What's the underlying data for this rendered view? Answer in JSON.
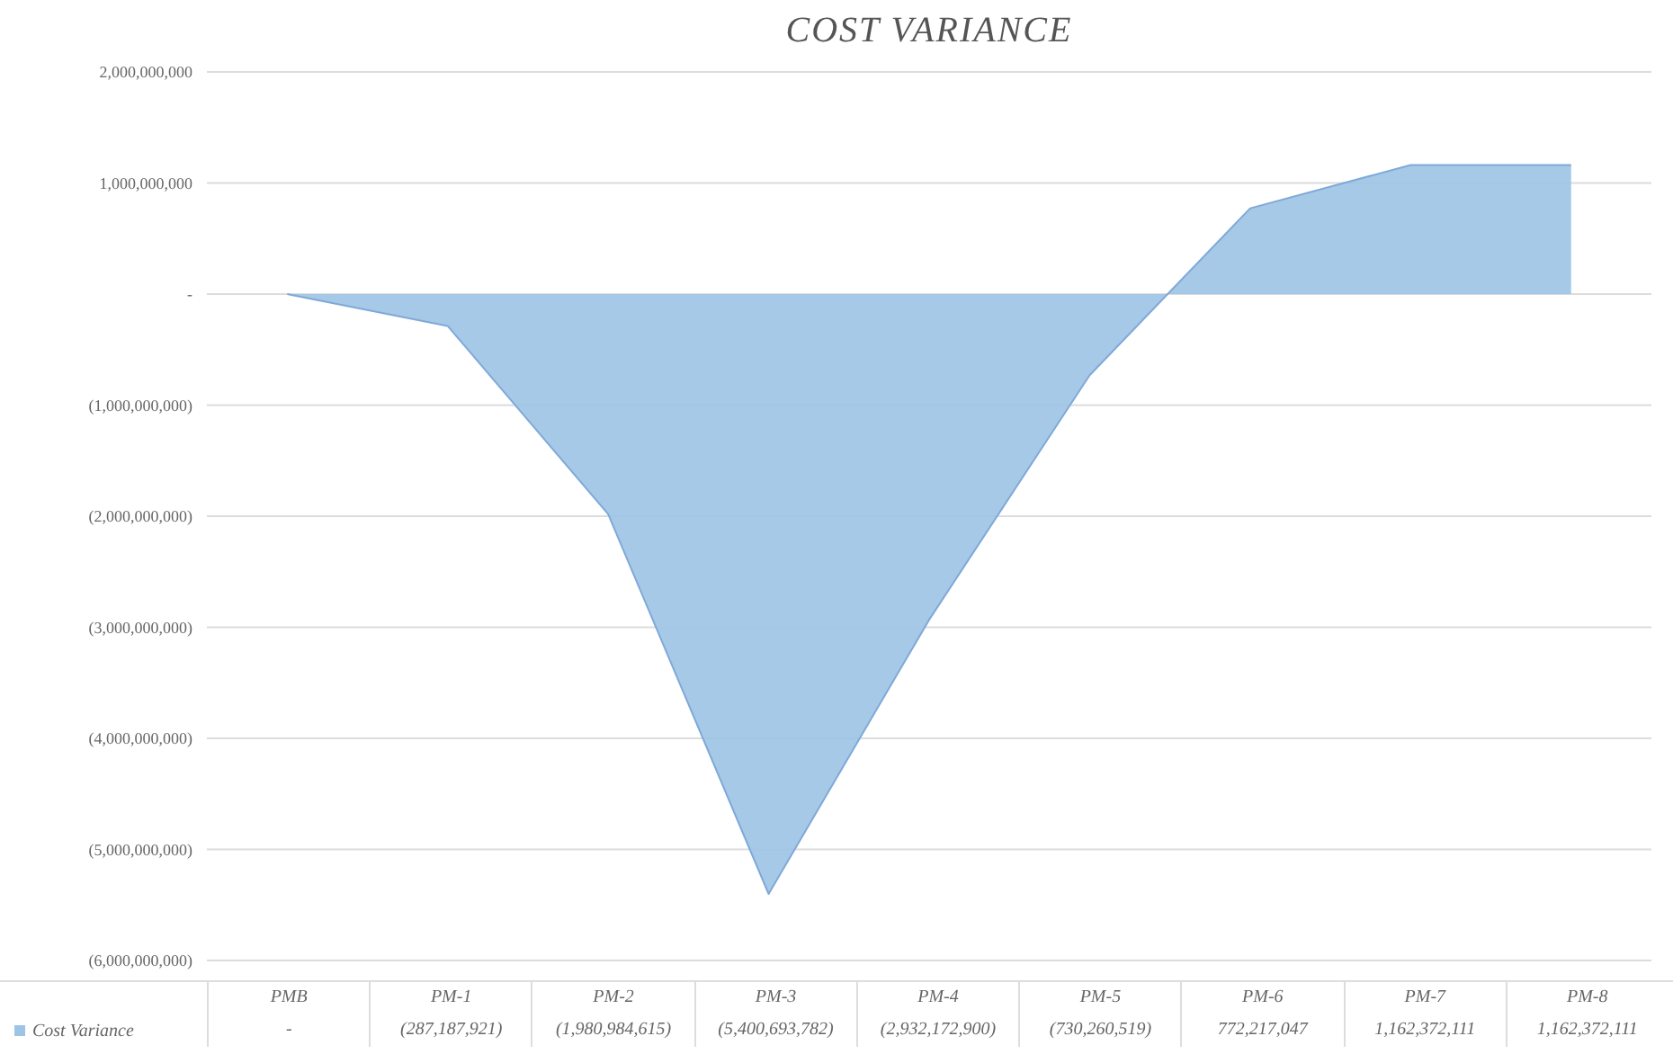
{
  "chart_data": {
    "type": "area",
    "title": "COST VARIANCE",
    "categories": [
      "PMB",
      "PM-1",
      "PM-2",
      "PM-3",
      "PM-4",
      "PM-5",
      "PM-6",
      "PM-7",
      "PM-8"
    ],
    "series": [
      {
        "name": "Cost Variance",
        "color": "#9dc3e6",
        "values": [
          0,
          -287187921,
          -1980984615,
          -5400693782,
          -2932172900,
          -730260519,
          772217047,
          1162372111,
          1162372111
        ],
        "value_labels": [
          "-",
          "(287,187,921)",
          "(1,980,984,615)",
          "(5,400,693,782)",
          "(2,932,172,900)",
          "(730,260,519)",
          "772,217,047",
          "1,162,372,111",
          "1,162,372,111"
        ]
      }
    ],
    "ylim": [
      -6000000000,
      2000000000
    ],
    "yticks": [
      {
        "value": -6000000000,
        "label": "(6,000,000,000)"
      },
      {
        "value": -5000000000,
        "label": "(5,000,000,000)"
      },
      {
        "value": -4000000000,
        "label": "(4,000,000,000)"
      },
      {
        "value": -3000000000,
        "label": "(3,000,000,000)"
      },
      {
        "value": -2000000000,
        "label": "(2,000,000,000)"
      },
      {
        "value": -1000000000,
        "label": "(1,000,000,000)"
      },
      {
        "value": 0,
        "label": "-"
      },
      {
        "value": 1000000000,
        "label": "1,000,000,000"
      },
      {
        "value": 2000000000,
        "label": "2,000,000,000"
      }
    ],
    "grid": "y",
    "legend": "bottom"
  }
}
